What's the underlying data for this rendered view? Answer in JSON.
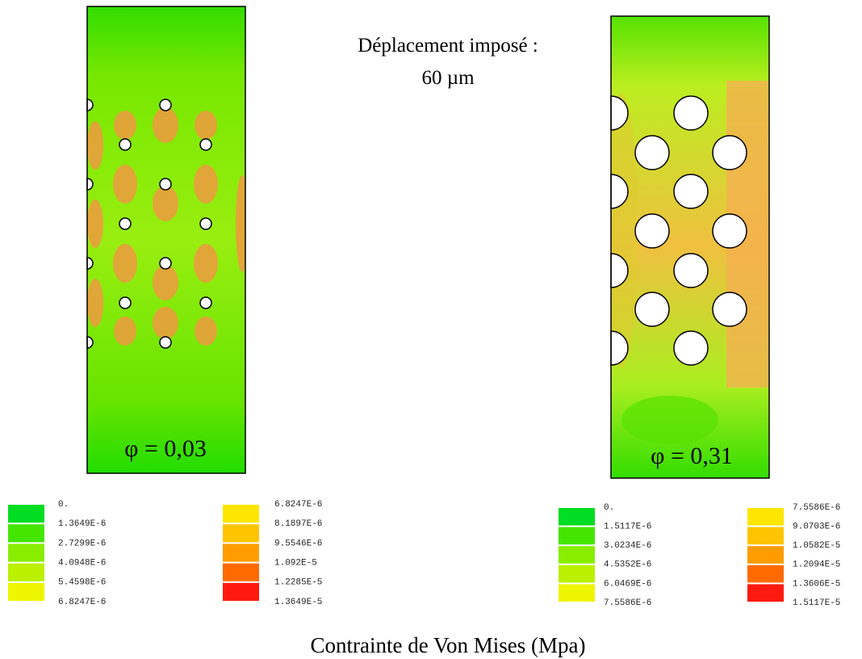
{
  "header": {
    "line1": "Déplacement imposé :",
    "line2": "60 µm"
  },
  "panels": [
    {
      "label": "φ = 0,03"
    },
    {
      "label": "φ = 0,31"
    }
  ],
  "legends": [
    {
      "columns": [
        {
          "labels": [
            "0.",
            "1.3649E-6",
            "2.7299E-6",
            "4.0948E-6",
            "5.4598E-6",
            "6.8247E-6"
          ],
          "colors": [
            "#00dd22",
            "#44e600",
            "#88ee00",
            "#bbf000",
            "#eef500"
          ]
        },
        {
          "labels": [
            "6.8247E-6",
            "8.1897E-6",
            "9.5546E-6",
            "1.092E-5",
            "1.2285E-5",
            "1.3649E-5"
          ],
          "colors": [
            "#ffe600",
            "#ffc400",
            "#ff9c00",
            "#ff6a00",
            "#ff1a10"
          ]
        }
      ]
    },
    {
      "columns": [
        {
          "labels": [
            "0.",
            "1.5117E-6",
            "3.0234E-6",
            "4.5352E-6",
            "6.0469E-6",
            "7.5586E-6"
          ],
          "colors": [
            "#00dd22",
            "#44e600",
            "#88ee00",
            "#bbf000",
            "#eef500"
          ]
        },
        {
          "labels": [
            "7.5586E-6",
            "9.0703E-6",
            "1.0582E-5",
            "1.2094E-5",
            "1.3606E-5",
            "1.5117E-5"
          ],
          "colors": [
            "#ffe600",
            "#ffc400",
            "#ff9c00",
            "#ff6a00",
            "#ff1a10"
          ]
        }
      ]
    }
  ],
  "footer": {
    "caption": "Contrainte de Von Mises (Mpa)"
  }
}
